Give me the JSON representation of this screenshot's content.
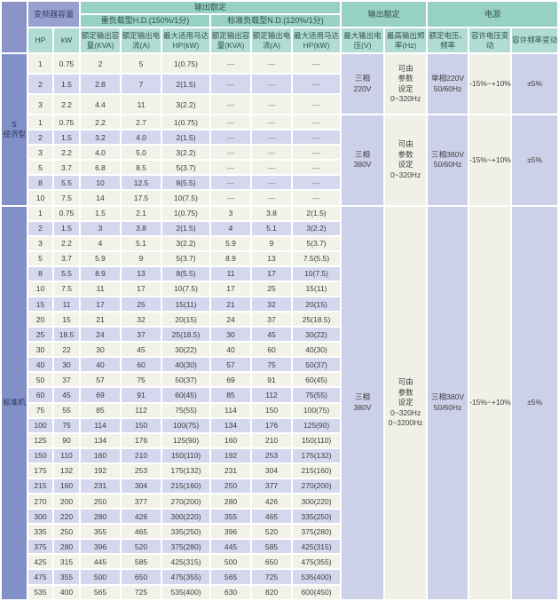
{
  "table": {
    "headers": {
      "inverter_capacity": "变频器容量",
      "output_rating_left": "输出额定",
      "hd_group": "重负载型H.D.(150%/1分)",
      "nd_group": "标准负载型N.D.(120%/1分)",
      "output_rating_right": "输出额定",
      "power": "电源",
      "hp": "HP",
      "kw": "kW",
      "rated_capacity": "额定输出容量(KVA)",
      "rated_current": "额定输出电流(A)",
      "max_motor": "最大适用马达HP(kW)",
      "max_voltage": "最大输出电压(V)",
      "max_freq": "最高输出频率(Hz)",
      "rated_vf": "额定电压、频率",
      "volt_fluct": "容许电压变动",
      "freq_fluct": "容许频率变动"
    },
    "sections": [
      {
        "name": "economy",
        "label_lines": [
          "S",
          "经济型"
        ],
        "row_groups": [
          {
            "merged": {
              "max_v": [
                "三相",
                "220V"
              ],
              "max_hz": [
                "可由",
                "参数",
                "设定",
                "0~320Hz"
              ],
              "rated_vf": [
                "单相220V",
                "50/60Hz"
              ],
              "volt_var": [
                "-15%~+10%"
              ],
              "freq_var": [
                "±5%"
              ]
            },
            "rows": [
              {
                "hp": "1",
                "kw": "0.75",
                "hd": [
                  "2",
                  "5",
                  "1(0.75)"
                ],
                "nd": [
                  "—",
                  "—",
                  "—"
                ],
                "shaded": false
              },
              {
                "hp": "2",
                "kw": "1.5",
                "hd": [
                  "2.8",
                  "7",
                  "2(1.5)"
                ],
                "nd": [
                  "—",
                  "—",
                  "—"
                ],
                "shaded": true
              },
              {
                "hp": "3",
                "kw": "2.2",
                "hd": [
                  "4.4",
                  "11",
                  "3(2.2)"
                ],
                "nd": [
                  "—",
                  "—",
                  "—"
                ],
                "shaded": false
              }
            ]
          },
          {
            "merged": {
              "max_v": [
                "三相",
                "380V"
              ],
              "max_hz": [
                "可由",
                "参数",
                "设定",
                "0~320Hz"
              ],
              "rated_vf": [
                "三相380V",
                "50/60Hz"
              ],
              "volt_var": [
                "-15%~+10%"
              ],
              "freq_var": [
                "±5%"
              ]
            },
            "rows": [
              {
                "hp": "1",
                "kw": "0.75",
                "hd": [
                  "2.2",
                  "2.7",
                  "1(0.75)"
                ],
                "nd": [
                  "—",
                  "—",
                  "—"
                ],
                "shaded": false
              },
              {
                "hp": "2",
                "kw": "1.5",
                "hd": [
                  "3.2",
                  "4.0",
                  "2(1.5)"
                ],
                "nd": [
                  "—",
                  "—",
                  "—"
                ],
                "shaded": true
              },
              {
                "hp": "3",
                "kw": "2.2",
                "hd": [
                  "4.0",
                  "5.0",
                  "3(2.2)"
                ],
                "nd": [
                  "—",
                  "—",
                  "—"
                ],
                "shaded": false
              },
              {
                "hp": "5",
                "kw": "3.7",
                "hd": [
                  "6.8",
                  "8.5",
                  "5(3.7)"
                ],
                "nd": [
                  "—",
                  "—",
                  "—"
                ],
                "shaded": false
              },
              {
                "hp": "8",
                "kw": "5.5",
                "hd": [
                  "10",
                  "12.5",
                  "8(5.5)"
                ],
                "nd": [
                  "—",
                  "—",
                  "—"
                ],
                "shaded": true
              },
              {
                "hp": "10",
                "kw": "7.5",
                "hd": [
                  "14",
                  "17.5",
                  "10(7.5)"
                ],
                "nd": [
                  "—",
                  "—",
                  "—"
                ],
                "shaded": false
              }
            ]
          }
        ]
      },
      {
        "name": "standard",
        "label_lines": [
          "标准机"
        ],
        "row_groups": [
          {
            "merged": {
              "max_v": [
                "三相",
                "380V"
              ],
              "max_hz": [
                "可由",
                "参数",
                "设定",
                "0~320Hz",
                "0~3200Hz"
              ],
              "rated_vf": [
                "三相380V",
                "50/60Hz"
              ],
              "volt_var": [
                "-15%~+10%"
              ],
              "freq_var": [
                "±5%"
              ]
            },
            "rows": [
              {
                "hp": "1",
                "kw": "0.75",
                "hd": [
                  "1.5",
                  "2.1",
                  "1(0.75)"
                ],
                "nd": [
                  "3",
                  "3.8",
                  "2(1.5)"
                ],
                "shaded": false
              },
              {
                "hp": "2",
                "kw": "1.5",
                "hd": [
                  "3",
                  "3.8",
                  "2(1.5)"
                ],
                "nd": [
                  "4",
                  "5.1",
                  "3(2.2)"
                ],
                "shaded": true
              },
              {
                "hp": "3",
                "kw": "2.2",
                "hd": [
                  "4",
                  "5.1",
                  "3(2.2)"
                ],
                "nd": [
                  "5.9",
                  "9",
                  "5(3.7)"
                ],
                "shaded": false
              },
              {
                "hp": "5",
                "kw": "3.7",
                "hd": [
                  "5.9",
                  "9",
                  "5(3.7)"
                ],
                "nd": [
                  "8.9",
                  "13",
                  "7.5(5.5)"
                ],
                "shaded": false
              },
              {
                "hp": "8",
                "kw": "5.5",
                "hd": [
                  "8.9",
                  "13",
                  "8(5.5)"
                ],
                "nd": [
                  "11",
                  "17",
                  "10(7.5)"
                ],
                "shaded": true
              },
              {
                "hp": "10",
                "kw": "7.5",
                "hd": [
                  "11",
                  "17",
                  "10(7.5)"
                ],
                "nd": [
                  "17",
                  "25",
                  "15(11)"
                ],
                "shaded": false
              },
              {
                "hp": "15",
                "kw": "11",
                "hd": [
                  "17",
                  "25",
                  "15(11)"
                ],
                "nd": [
                  "21",
                  "32",
                  "20(15)"
                ],
                "shaded": true
              },
              {
                "hp": "20",
                "kw": "15",
                "hd": [
                  "21",
                  "32",
                  "20(15)"
                ],
                "nd": [
                  "24",
                  "37",
                  "25(18.5)"
                ],
                "shaded": false
              },
              {
                "hp": "25",
                "kw": "18.5",
                "hd": [
                  "24",
                  "37",
                  "25(18.5)"
                ],
                "nd": [
                  "30",
                  "45",
                  "30(22)"
                ],
                "shaded": true
              },
              {
                "hp": "30",
                "kw": "22",
                "hd": [
                  "30",
                  "45",
                  "30(22)"
                ],
                "nd": [
                  "40",
                  "60",
                  "40(30)"
                ],
                "shaded": false
              },
              {
                "hp": "40",
                "kw": "30",
                "hd": [
                  "40",
                  "60",
                  "40(30)"
                ],
                "nd": [
                  "57",
                  "75",
                  "50(37)"
                ],
                "shaded": true
              },
              {
                "hp": "50",
                "kw": "37",
                "hd": [
                  "57",
                  "75",
                  "50(37)"
                ],
                "nd": [
                  "69",
                  "91",
                  "60(45)"
                ],
                "shaded": false
              },
              {
                "hp": "60",
                "kw": "45",
                "hd": [
                  "69",
                  "91",
                  "60(45)"
                ],
                "nd": [
                  "85",
                  "112",
                  "75(55)"
                ],
                "shaded": true
              },
              {
                "hp": "75",
                "kw": "55",
                "hd": [
                  "85",
                  "112",
                  "75(55)"
                ],
                "nd": [
                  "114",
                  "150",
                  "100(75)"
                ],
                "shaded": false
              },
              {
                "hp": "100",
                "kw": "75",
                "hd": [
                  "114",
                  "150",
                  "100(75)"
                ],
                "nd": [
                  "134",
                  "176",
                  "125(90)"
                ],
                "shaded": true
              },
              {
                "hp": "125",
                "kw": "90",
                "hd": [
                  "134",
                  "176",
                  "125(90)"
                ],
                "nd": [
                  "160",
                  "210",
                  "150(110)"
                ],
                "shaded": false
              },
              {
                "hp": "150",
                "kw": "110",
                "hd": [
                  "160",
                  "210",
                  "150(110)"
                ],
                "nd": [
                  "192",
                  "253",
                  "175(132)"
                ],
                "shaded": true
              },
              {
                "hp": "175",
                "kw": "132",
                "hd": [
                  "192",
                  "253",
                  "175(132)"
                ],
                "nd": [
                  "231",
                  "304",
                  "215(160)"
                ],
                "shaded": false
              },
              {
                "hp": "215",
                "kw": "160",
                "hd": [
                  "231",
                  "304",
                  "215(160)"
                ],
                "nd": [
                  "250",
                  "377",
                  "270(200)"
                ],
                "shaded": true
              },
              {
                "hp": "270",
                "kw": "200",
                "hd": [
                  "250",
                  "377",
                  "270(200)"
                ],
                "nd": [
                  "280",
                  "426",
                  "300(220)"
                ],
                "shaded": false
              },
              {
                "hp": "300",
                "kw": "220",
                "hd": [
                  "280",
                  "426",
                  "300(220)"
                ],
                "nd": [
                  "355",
                  "465",
                  "335(250)"
                ],
                "shaded": true
              },
              {
                "hp": "335",
                "kw": "250",
                "hd": [
                  "355",
                  "465",
                  "335(250)"
                ],
                "nd": [
                  "396",
                  "520",
                  "375(280)"
                ],
                "shaded": false
              },
              {
                "hp": "375",
                "kw": "280",
                "hd": [
                  "396",
                  "520",
                  "375(280)"
                ],
                "nd": [
                  "445",
                  "585",
                  "425(315)"
                ],
                "shaded": true
              },
              {
                "hp": "425",
                "kw": "315",
                "hd": [
                  "445",
                  "585",
                  "425(315)"
                ],
                "nd": [
                  "500",
                  "650",
                  "475(355)"
                ],
                "shaded": false
              },
              {
                "hp": "475",
                "kw": "355",
                "hd": [
                  "500",
                  "650",
                  "475(355)"
                ],
                "nd": [
                  "565",
                  "725",
                  "535(400)"
                ],
                "shaded": true
              },
              {
                "hp": "535",
                "kw": "400",
                "hd": [
                  "565",
                  "725",
                  "535(400)"
                ],
                "nd": [
                  "630",
                  "820",
                  "600(450)"
                ],
                "shaded": false
              }
            ]
          }
        ]
      }
    ],
    "colors": {
      "header_purple": "#8a94c9",
      "header_teal": "#97d1c3",
      "header_teal_light": "#b0dcd3",
      "group_column": "#8191c8",
      "row_light": "#f3f2e9",
      "row_lavender": "#d5d7ee",
      "merged_lavender": "#ccd1e9",
      "merged_beige": "#f1f0e7"
    }
  }
}
